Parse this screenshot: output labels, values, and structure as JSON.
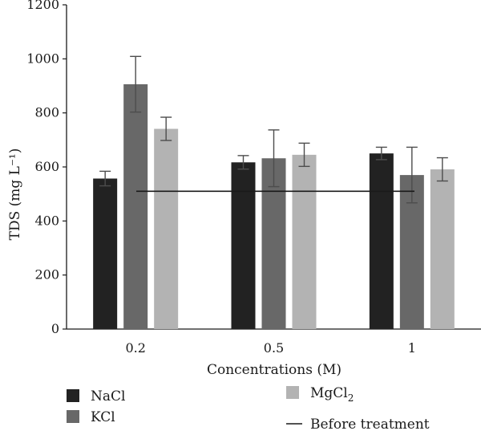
{
  "chart_data": {
    "type": "bar",
    "title": "",
    "xlabel": "Concentrations (M)",
    "ylabel": "TDS (mg L⁻¹)",
    "ylim": [
      0,
      1200
    ],
    "yticks": [
      0,
      200,
      400,
      600,
      800,
      1000,
      1200
    ],
    "categories": [
      "0.2",
      "0.5",
      "1"
    ],
    "series": [
      {
        "name": "NaCl",
        "color": "#222222",
        "values": [
          557,
          617,
          650
        ],
        "errors": [
          27,
          25,
          23
        ]
      },
      {
        "name": "KCl",
        "color": "#686868",
        "values": [
          906,
          632,
          570
        ],
        "errors": [
          103,
          105,
          103
        ]
      },
      {
        "name": "MgCl",
        "name_sub": "2",
        "color": "#b3b3b3",
        "values": [
          741,
          645,
          591
        ],
        "errors": [
          43,
          43,
          43
        ]
      }
    ],
    "reference_line": {
      "name": "Before treatment",
      "value": 510,
      "color": "#1a1a1a"
    },
    "legend": "bottom",
    "grid": false
  }
}
